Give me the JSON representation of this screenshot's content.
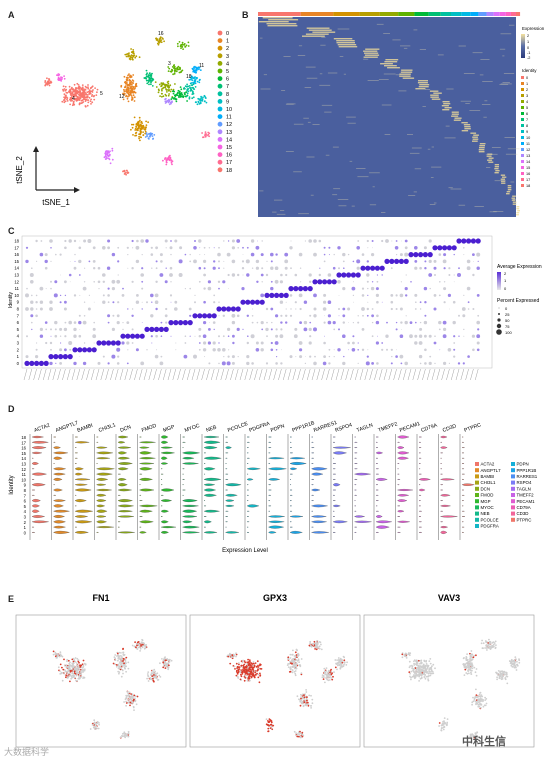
{
  "panels": {
    "a": "A",
    "b": "B",
    "c": "C",
    "d": "D",
    "e": "E"
  },
  "panel_a": {
    "clusters": [
      "0",
      "1",
      "2",
      "3",
      "4",
      "5",
      "6",
      "7",
      "8",
      "9",
      "10",
      "11",
      "12",
      "13",
      "14",
      "15",
      "16",
      "17",
      "18"
    ],
    "colors": [
      "#f8766d",
      "#e88526",
      "#d39200",
      "#b79f00",
      "#93aa00",
      "#5eb300",
      "#00ba38",
      "#00bf74",
      "#00c19f",
      "#00bfc4",
      "#00b9e3",
      "#00adfa",
      "#619cff",
      "#ae87ff",
      "#db72fb",
      "#f564e3",
      "#ff61c3",
      "#ff6c91",
      "#f8766d"
    ],
    "xlabel": "tSNE_1",
    "ylabel": "tSNE_2",
    "cluster_labels_shown": [
      "16",
      "3",
      "11",
      "5",
      "12",
      "4",
      "18"
    ]
  },
  "panel_b": {
    "legend_title": "Expression",
    "legend_ticks": [
      "2",
      "1",
      "0",
      "-1",
      "-2"
    ],
    "identity_title": "Identity"
  },
  "panel_c": {
    "ylabel": "Identity",
    "identities": [
      "18",
      "17",
      "16",
      "15",
      "14",
      "13",
      "12",
      "11",
      "10",
      "9",
      "8",
      "7",
      "6",
      "5",
      "4",
      "3",
      "2",
      "1",
      "0"
    ],
    "legend_expr_title": "Average Expression",
    "legend_expr_ticks": [
      "2",
      "1",
      "0"
    ],
    "legend_pct_title": "Percent Expressed",
    "legend_pct_ticks": [
      "0",
      "25",
      "50",
      "75",
      "100"
    ]
  },
  "panel_d": {
    "genes": [
      "ACTA2",
      "ANGPTL7",
      "BAMBI",
      "CHI3L1",
      "DCN",
      "FMOD",
      "MGP",
      "MYOC",
      "NEB",
      "PCOLCE",
      "PDGFRA",
      "PDPN",
      "PPP1R1B",
      "RARRES1",
      "RSPO4",
      "TAGLN",
      "TMEFF2",
      "PECAM1",
      "CD79A",
      "CD3D",
      "PTPRC"
    ],
    "gene_colors": [
      "#f0766a",
      "#e18a2a",
      "#c99a14",
      "#a7a414",
      "#8aaa1a",
      "#5fb41a",
      "#2fb830",
      "#18b95a",
      "#14b98a",
      "#14b8a8",
      "#14b6c6",
      "#14afd8",
      "#1aa3e6",
      "#4a8ef2",
      "#7a7cf6",
      "#a46cf2",
      "#c862e6",
      "#e05cd0",
      "#ec5cb4",
      "#f2669a",
      "#f0766a"
    ],
    "identities": [
      "18",
      "17",
      "16",
      "15",
      "14",
      "13",
      "12",
      "11",
      "10",
      "9",
      "8",
      "7",
      "6",
      "5",
      "4",
      "3",
      "2",
      "1",
      "0"
    ],
    "ylabel": "Identity",
    "xlabel": "Expression Level"
  },
  "panel_e": {
    "genes": [
      "FN1",
      "GPX3",
      "VAV3"
    ]
  },
  "footer": {
    "watermark": "大数据科学",
    "brand": "中科生信"
  }
}
